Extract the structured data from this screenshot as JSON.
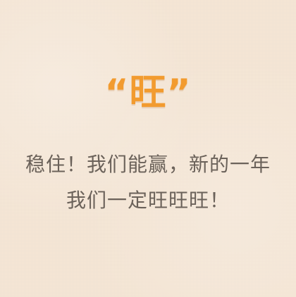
{
  "headline": "“旺”",
  "lines": [
    "稳住！我们能赢，新的一年",
    "我们一定旺旺旺！"
  ],
  "colors": {
    "background": "#f6e7d6",
    "accent": "#f29b2f",
    "text": "#6b625a"
  }
}
